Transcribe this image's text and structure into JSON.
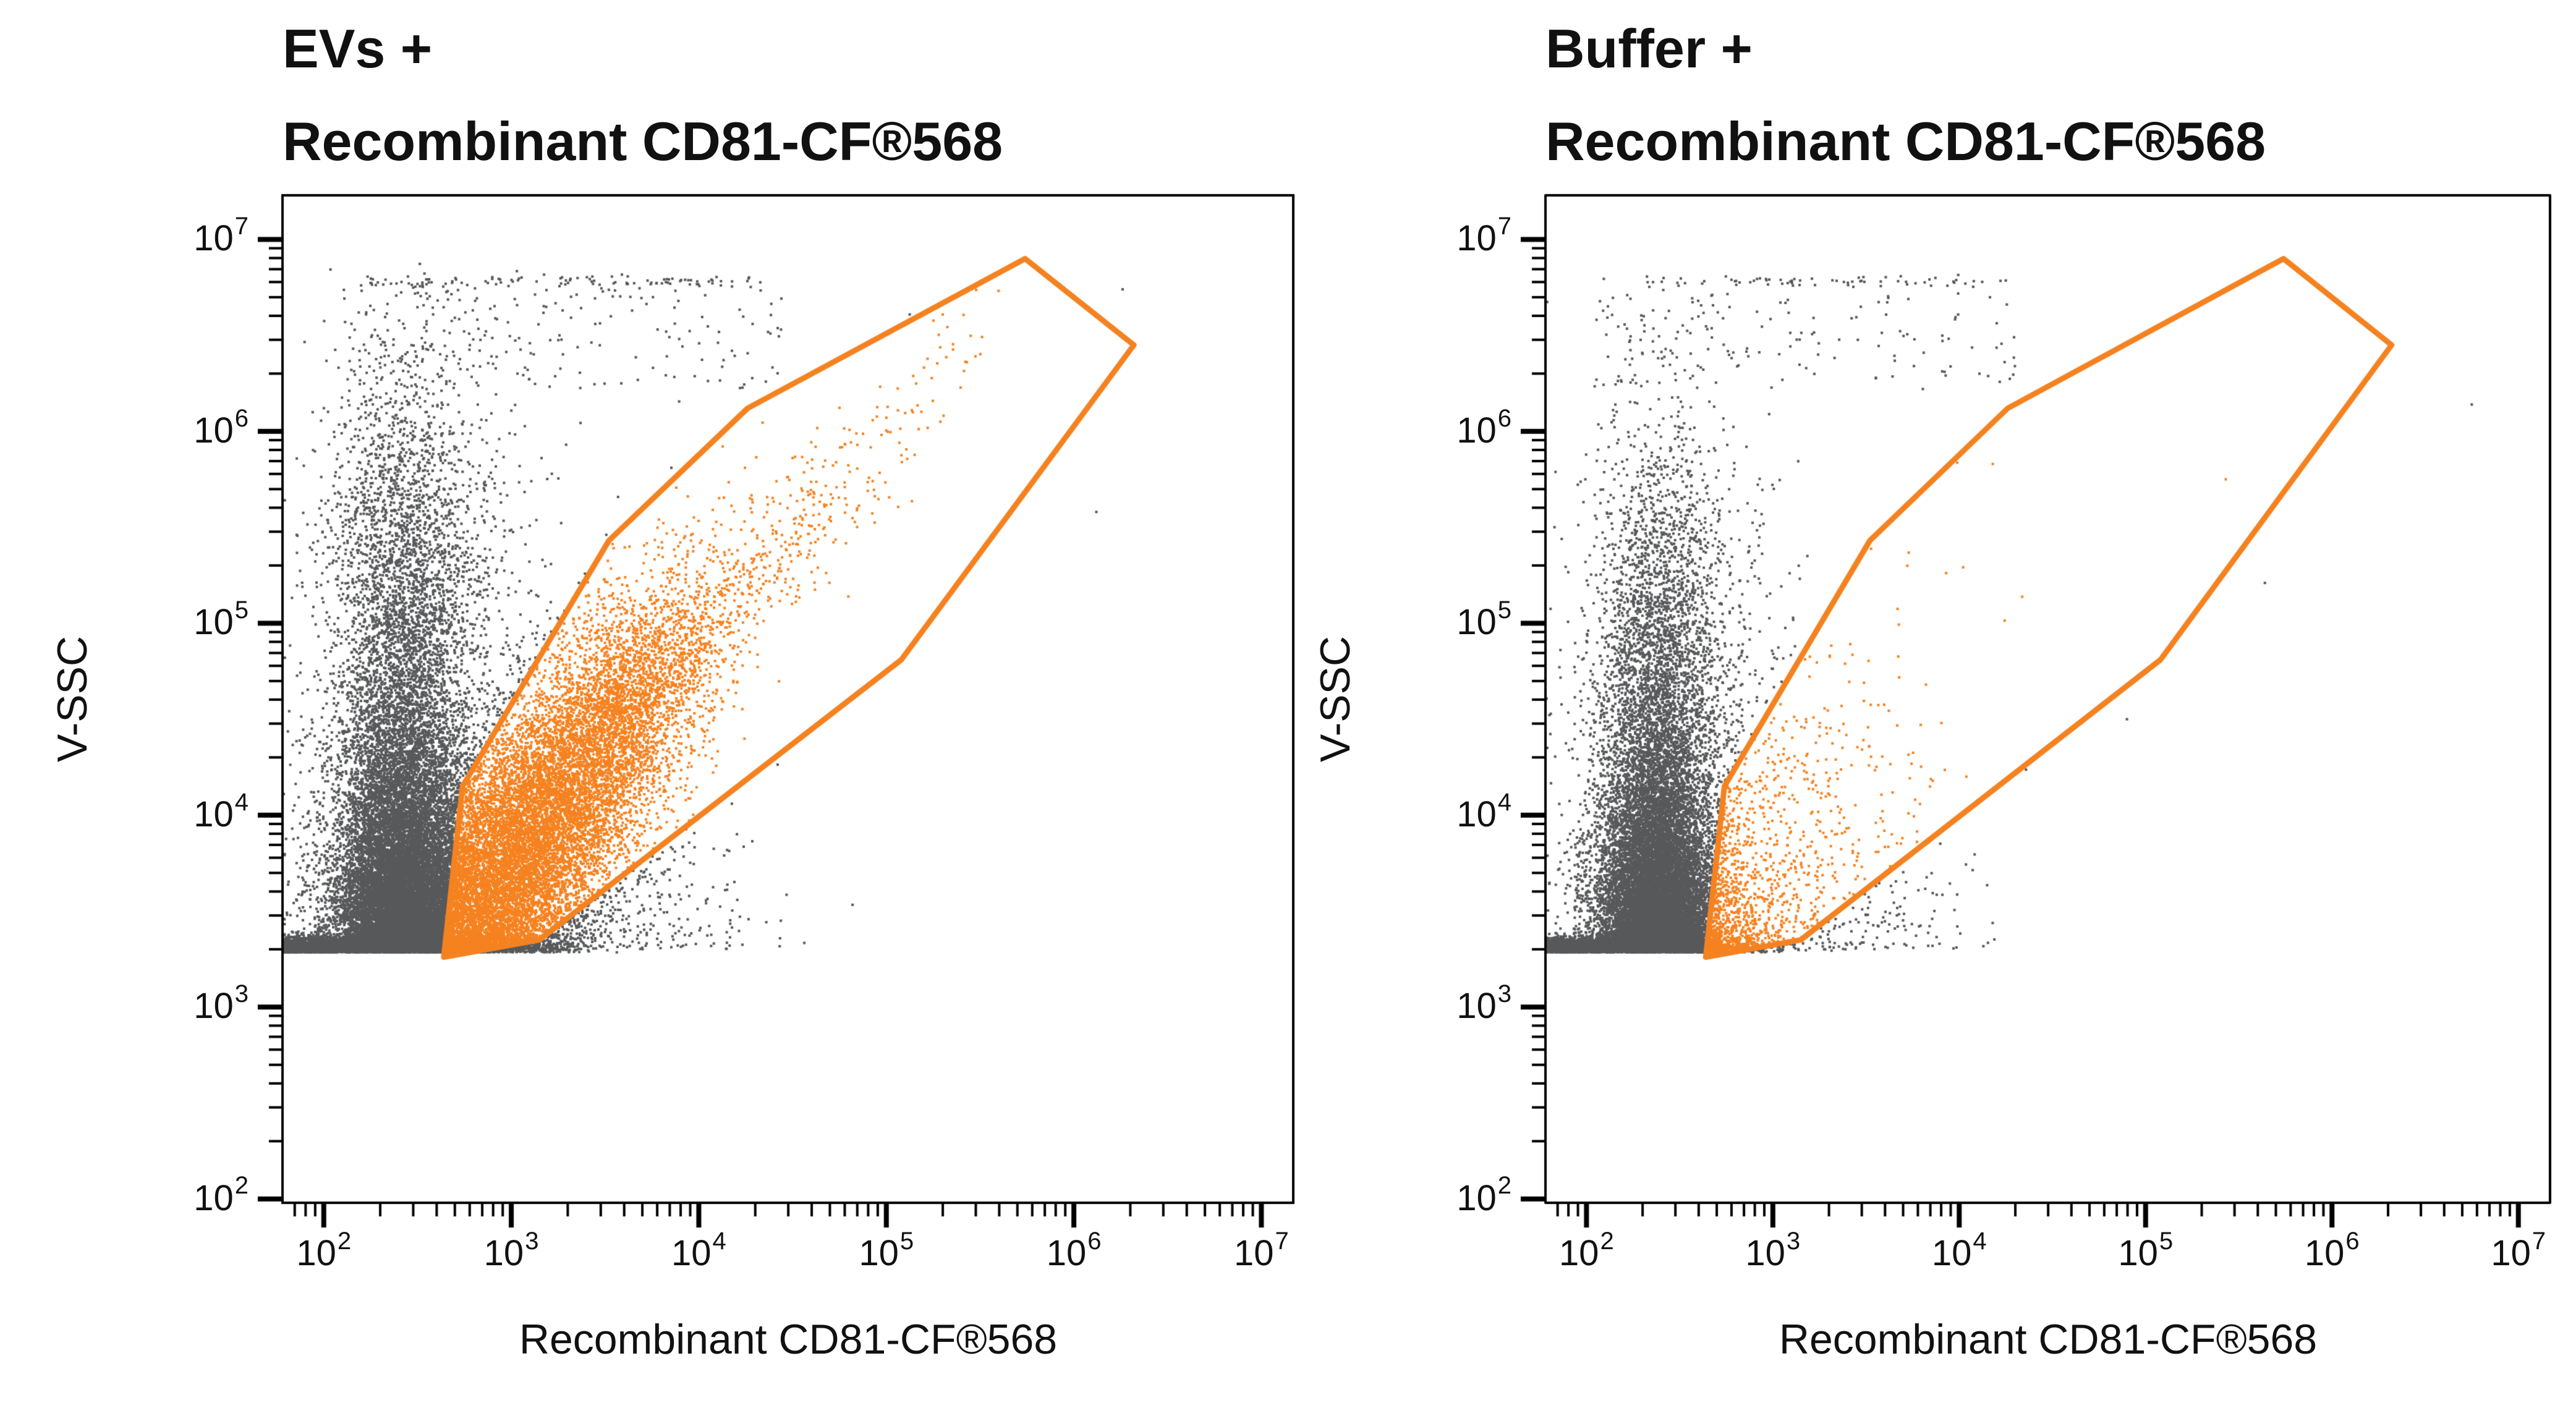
{
  "page": {
    "background": "#ffffff"
  },
  "chart_data": {
    "type": "scatter",
    "subtype": "flow-cytometry-dot-plot",
    "colors": {
      "gray_events": "#58595B",
      "orange_events": "#F58220",
      "gate": "#F58220",
      "axis": "#000000"
    },
    "marker_px": 4,
    "axes": {
      "scale": "log10",
      "x_label": "Recombinant CD81-CF®568",
      "y_label": "V-SSC",
      "tick_base": "10",
      "x_ticks_exponents": [
        2,
        3,
        4,
        5,
        6,
        7
      ],
      "y_ticks_exponents": [
        2,
        3,
        4,
        5,
        6,
        7
      ],
      "x_range_log": [
        1.78,
        7.17
      ],
      "y_range_log": [
        1.98,
        7.23
      ],
      "grid": false
    },
    "gate_polygon_log": [
      [
        2.64,
        3.26
      ],
      [
        2.74,
        4.15
      ],
      [
        3.52,
        5.43
      ],
      [
        4.26,
        6.12
      ],
      [
        5.74,
        6.9
      ],
      [
        6.32,
        6.45
      ],
      [
        5.08,
        4.81
      ],
      [
        3.15,
        3.35
      ]
    ],
    "panels": [
      {
        "id": "evs",
        "title_line1": "EVs +",
        "title_line2": "Recombinant CD81-CF®568",
        "seed": 1234,
        "populations": [
          {
            "type": "floor_bar",
            "x": [
              1.78,
              2.85
            ],
            "n": 6500,
            "y_base": 3.285,
            "y_sigma": 0.035
          },
          {
            "type": "comet",
            "x_mean": 2.9,
            "x_sigma": 0.22,
            "clip_x": [
              2.78,
              3.8
            ],
            "y_base": 3.285,
            "y_exp": 0.06,
            "n": 800
          },
          {
            "type": "comet",
            "x_mean": 2.42,
            "x_sigma": 0.17,
            "y_base": 3.3,
            "y_exp": 0.55,
            "n": 15000,
            "clip_y_max": 6.9
          },
          {
            "type": "comet",
            "x_mean": 2.55,
            "x_sigma": 0.34,
            "y_base": 3.3,
            "y_exp": 0.9,
            "n": 2600,
            "clip_y_max": 6.85
          },
          {
            "type": "gauss2d",
            "mean": [
              2.44,
              5.35
            ],
            "sigma": [
              0.21,
              0.5
            ],
            "rho": 0,
            "n": 1500
          },
          {
            "type": "comet",
            "x_mean": 3.3,
            "x_sigma": 0.5,
            "clip_x": [
              2.85,
              4.9
            ],
            "y_base": 3.3,
            "y_exp": 0.38,
            "n": 600
          },
          {
            "type": "row",
            "y_mean": 6.78,
            "y_sigma": 0.015,
            "x": [
              2.25,
              4.35
            ],
            "n": 110
          },
          {
            "type": "box",
            "x": [
              2.05,
              4.45
            ],
            "y": [
              6.22,
              6.74
            ],
            "n": 170
          },
          {
            "type": "gauss2d",
            "mean": [
              3.05,
              3.82
            ],
            "sigma": [
              0.42,
              0.58
            ],
            "rho": 0.78,
            "n": 11000,
            "clip_y_min": 3.285
          },
          {
            "type": "diag",
            "x_start": 3.5,
            "x_scale": 0.6,
            "x_max": 5.6,
            "intercept": 0.95,
            "y_sigma": 0.2,
            "n": 1100
          },
          {
            "type": "points",
            "pts": [
              [
                6.26,
                6.74
              ],
              [
                6.12,
                5.58
              ]
            ]
          }
        ]
      },
      {
        "id": "buffer",
        "title_line1": "Buffer +",
        "title_line2": "Recombinant CD81-CF®568",
        "seed": 987,
        "populations": [
          {
            "type": "floor_bar",
            "x": [
              1.78,
              2.72
            ],
            "n": 5200,
            "y_base": 3.285,
            "y_sigma": 0.035
          },
          {
            "type": "comet",
            "x_mean": 2.78,
            "x_sigma": 0.15,
            "clip_x": [
              2.7,
              3.4
            ],
            "y_base": 3.285,
            "y_exp": 0.05,
            "n": 300
          },
          {
            "type": "comet",
            "x_mean": 2.38,
            "x_sigma": 0.15,
            "y_base": 3.3,
            "y_exp": 0.5,
            "n": 13500,
            "clip_y_max": 6.85
          },
          {
            "type": "comet",
            "x_mean": 2.5,
            "x_sigma": 0.3,
            "y_base": 3.3,
            "y_exp": 0.85,
            "n": 2200,
            "clip_y_max": 6.8
          },
          {
            "type": "gauss2d",
            "mean": [
              2.4,
              5.05
            ],
            "sigma": [
              0.18,
              0.45
            ],
            "rho": 0,
            "n": 1000
          },
          {
            "type": "comet",
            "x_mean": 3.1,
            "x_sigma": 0.45,
            "clip_x": [
              2.75,
              4.5
            ],
            "y_base": 3.3,
            "y_exp": 0.4,
            "n": 450
          },
          {
            "type": "row",
            "y_mean": 6.78,
            "y_sigma": 0.015,
            "x": [
              2.3,
              4.3
            ],
            "n": 70
          },
          {
            "type": "box",
            "x": [
              2.05,
              4.3
            ],
            "y": [
              6.22,
              6.72
            ],
            "n": 130
          },
          {
            "type": "gauss2d",
            "mean": [
              3.15,
              3.9
            ],
            "sigma": [
              0.5,
              0.68
            ],
            "rho": 0.5,
            "n": 170,
            "clip_y_min": 3.285
          },
          {
            "type": "points",
            "pts": [
              [
                4.18,
                5.83
              ],
              [
                5.43,
                5.75
              ],
              [
                6.75,
                6.14
              ],
              [
                5.64,
                5.21
              ],
              [
                4.9,
                4.5
              ]
            ]
          }
        ]
      }
    ]
  }
}
